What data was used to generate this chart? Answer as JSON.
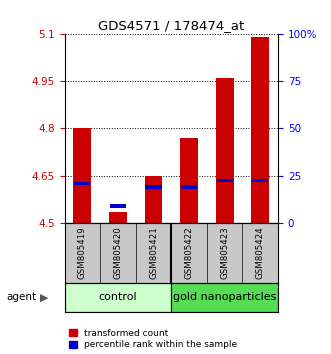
{
  "title": "GDS4571 / 178474_at",
  "samples": [
    "GSM805419",
    "GSM805420",
    "GSM805421",
    "GSM805422",
    "GSM805423",
    "GSM805424"
  ],
  "red_values": [
    4.8,
    4.535,
    4.65,
    4.77,
    4.96,
    5.09
  ],
  "blue_values": [
    4.625,
    4.555,
    4.615,
    4.615,
    4.635,
    4.635
  ],
  "red_color": "#cc0000",
  "blue_color": "#0000cc",
  "bar_base": 4.5,
  "ylim_left": [
    4.5,
    5.1
  ],
  "yticks_left": [
    4.5,
    4.65,
    4.8,
    4.95,
    5.1
  ],
  "ytick_labels_left": [
    "4.5",
    "4.65",
    "4.8",
    "4.95",
    "5.1"
  ],
  "ylim_right": [
    0,
    100
  ],
  "yticks_right": [
    0,
    25,
    50,
    75,
    100
  ],
  "ytick_labels_right": [
    "0",
    "25",
    "50",
    "75",
    "100%"
  ],
  "group_colors": [
    "#ccffcc",
    "#55dd55"
  ],
  "agent_label": "agent",
  "legend_items": [
    "transformed count",
    "percentile rank within the sample"
  ],
  "bar_width": 0.5,
  "sample_bg_color": "#c8c8c8",
  "bar_separator_color": "#000000"
}
